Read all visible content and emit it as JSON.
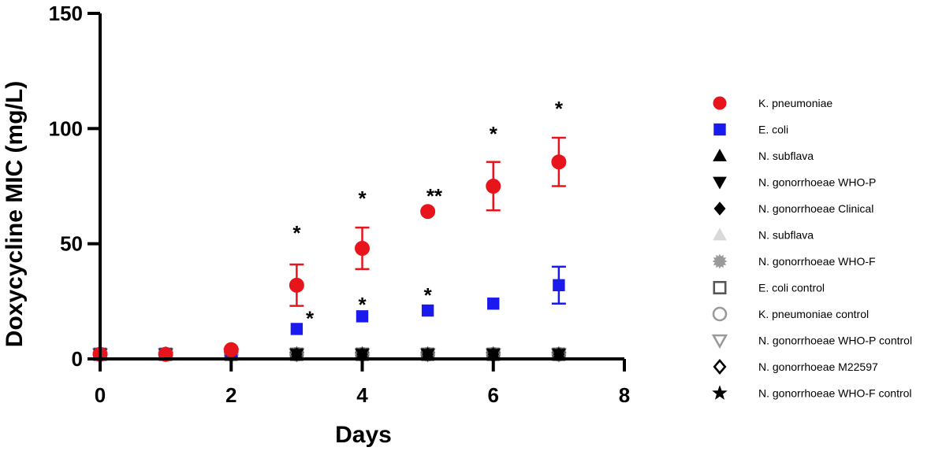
{
  "chart_data": {
    "type": "scatter",
    "xlabel": "Days",
    "ylabel": "Doxycycline MIC (mg/L)",
    "xlim": [
      0,
      8
    ],
    "ylim": [
      0,
      150
    ],
    "xticks": [
      "0",
      "2",
      "4",
      "6",
      "8"
    ],
    "yticks": [
      "0",
      "50",
      "100",
      "150"
    ],
    "grid": false,
    "legend_position": "right",
    "series": [
      {
        "name": "K. pneumoniae",
        "marker": "circle",
        "color": "#e8141c",
        "filled": true,
        "x": [
          0,
          1,
          2,
          3,
          4,
          5,
          6,
          7
        ],
        "y": [
          2,
          2,
          4,
          32,
          48,
          64,
          75,
          85.5
        ],
        "err": [
          0,
          0,
          0,
          9,
          9,
          0,
          10.5,
          10.5
        ]
      },
      {
        "name": "E. coli",
        "marker": "square",
        "color": "#1a1aef",
        "filled": true,
        "x": [
          0,
          1,
          2,
          3,
          4,
          5,
          6,
          7
        ],
        "y": [
          2,
          2,
          2,
          13,
          18.5,
          21,
          24,
          32
        ],
        "err": [
          0,
          0,
          0,
          0,
          0,
          0,
          0,
          8
        ]
      },
      {
        "name": "N. subflava",
        "marker": "triangle-up",
        "color": "#000000",
        "filled": true,
        "x": [
          0,
          1,
          2,
          3,
          4,
          5,
          6,
          7
        ],
        "y": [
          2,
          2,
          2,
          2,
          2,
          2,
          2,
          2
        ]
      },
      {
        "name": "N. gonorrhoeae WHO-P",
        "marker": "triangle-down",
        "color": "#000000",
        "filled": true,
        "x": [
          0,
          1,
          2,
          3,
          4,
          5,
          6,
          7
        ],
        "y": [
          2,
          2,
          2,
          2,
          2,
          2,
          2,
          2
        ]
      },
      {
        "name": "N. gonorrhoeae Clinical",
        "marker": "diamond",
        "color": "#000000",
        "filled": true,
        "x": [
          0,
          1,
          2,
          3,
          4,
          5,
          6,
          7
        ],
        "y": [
          2,
          2,
          2,
          2,
          2,
          2,
          2,
          2
        ]
      },
      {
        "name": "N. subflava",
        "marker": "triangle-up",
        "color": "#d9d9d9",
        "filled": true,
        "x": [
          0,
          1,
          2,
          3,
          4,
          5,
          6,
          7
        ],
        "y": [
          2,
          2,
          2,
          2,
          2,
          2,
          2,
          2
        ]
      },
      {
        "name": "N. gonorrhoeae WHO-F",
        "marker": "starburst",
        "color": "#9a9a9a",
        "filled": true,
        "x": [
          0,
          1,
          2,
          3,
          4,
          5,
          6,
          7
        ],
        "y": [
          2,
          2,
          2,
          2,
          2,
          2,
          2,
          2
        ]
      },
      {
        "name": "E. coli control",
        "marker": "square",
        "color": "#555555",
        "filled": false,
        "x": [
          0,
          1,
          2,
          3,
          4,
          5,
          6,
          7
        ],
        "y": [
          2,
          2,
          2,
          2,
          2,
          2,
          2,
          2
        ]
      },
      {
        "name": "K. pneumoniae control",
        "marker": "circle",
        "color": "#9a9a9a",
        "filled": false,
        "x": [
          0,
          1,
          2,
          3,
          4,
          5,
          6,
          7
        ],
        "y": [
          2,
          2,
          2,
          2,
          2,
          2,
          2,
          2
        ]
      },
      {
        "name": "N. gonorrhoeae WHO-P control",
        "marker": "triangle-down",
        "color": "#9a9a9a",
        "filled": false,
        "x": [
          0,
          1,
          2,
          3,
          4,
          5,
          6,
          7
        ],
        "y": [
          2,
          2,
          2,
          2,
          2,
          2,
          2,
          2
        ]
      },
      {
        "name": "N. gonorrhoeae M22597",
        "marker": "diamond",
        "color": "#000000",
        "filled": false,
        "x": [
          0,
          1,
          2,
          3,
          4,
          5,
          6,
          7
        ],
        "y": [
          2,
          2,
          2,
          2,
          2,
          2,
          2,
          2
        ]
      },
      {
        "name": "N. gonorrhoeae WHO-F control",
        "marker": "star",
        "color": "#000000",
        "filled": true,
        "x": [
          0,
          1,
          2,
          3,
          4,
          5,
          6,
          7
        ],
        "y": [
          2,
          2,
          2,
          2,
          2,
          2,
          2,
          2
        ]
      }
    ],
    "annotations": [
      {
        "text": "*",
        "x": 3,
        "y": 55
      },
      {
        "text": "*",
        "x": 3.2,
        "y": 18
      },
      {
        "text": "*",
        "x": 4,
        "y": 70
      },
      {
        "text": "*",
        "x": 4,
        "y": 24
      },
      {
        "text": "**",
        "x": 5.1,
        "y": 71
      },
      {
        "text": "*",
        "x": 5,
        "y": 28
      },
      {
        "text": "*",
        "x": 6,
        "y": 98
      },
      {
        "text": "*",
        "x": 7,
        "y": 109
      }
    ]
  }
}
